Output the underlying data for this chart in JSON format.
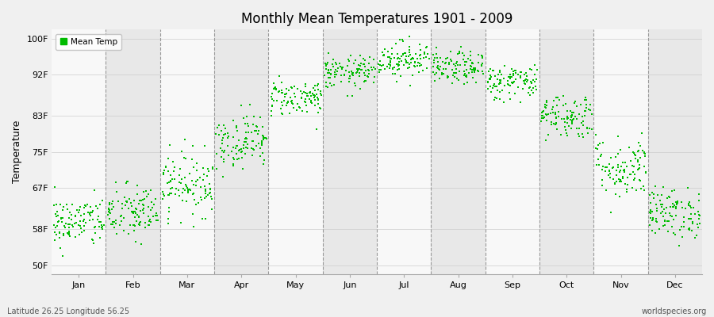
{
  "title": "Monthly Mean Temperatures 1901 - 2009",
  "ylabel": "Temperature",
  "yticks": [
    50,
    58,
    67,
    75,
    83,
    92,
    100
  ],
  "ytick_labels": [
    "50F",
    "58F",
    "67F",
    "75F",
    "83F",
    "92F",
    "100F"
  ],
  "ylim": [
    48,
    102
  ],
  "months": [
    "Jan",
    "Feb",
    "Mar",
    "Apr",
    "May",
    "Jun",
    "Jul",
    "Aug",
    "Sep",
    "Oct",
    "Nov",
    "Dec"
  ],
  "month_positions": [
    0.5,
    1.5,
    2.5,
    3.5,
    4.5,
    5.5,
    6.5,
    7.5,
    8.5,
    9.5,
    10.5,
    11.5
  ],
  "xlim": [
    0,
    12
  ],
  "dot_color": "#00BB00",
  "dot_size": 3,
  "background_color": "#f0f0f0",
  "band_colors": [
    "#f8f8f8",
    "#e8e8e8"
  ],
  "dashed_line_color": "#999999",
  "legend_label": "Mean Temp",
  "footer_left": "Latitude 26.25 Longitude 56.25",
  "footer_right": "worldspecies.org",
  "mean_temps_by_month": [
    {
      "month": 0,
      "mean": 59.5,
      "std": 2.8
    },
    {
      "month": 1,
      "mean": 61.5,
      "std": 3.2
    },
    {
      "month": 2,
      "mean": 68.0,
      "std": 3.5
    },
    {
      "month": 3,
      "mean": 77.5,
      "std": 3.0
    },
    {
      "month": 4,
      "mean": 87.0,
      "std": 2.0
    },
    {
      "month": 5,
      "mean": 92.5,
      "std": 1.8
    },
    {
      "month": 6,
      "mean": 95.5,
      "std": 2.0
    },
    {
      "month": 7,
      "mean": 93.5,
      "std": 1.8
    },
    {
      "month": 8,
      "mean": 90.5,
      "std": 2.0
    },
    {
      "month": 9,
      "mean": 83.0,
      "std": 2.5
    },
    {
      "month": 10,
      "mean": 71.5,
      "std": 3.5
    },
    {
      "month": 11,
      "mean": 61.5,
      "std": 2.8
    }
  ],
  "n_years": 109
}
